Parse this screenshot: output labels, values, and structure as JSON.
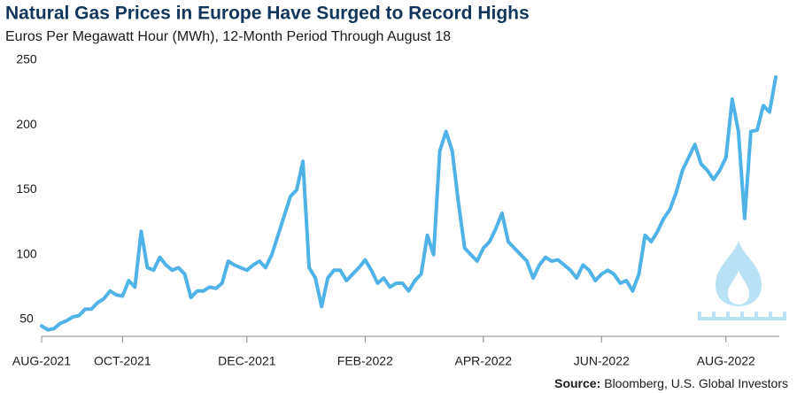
{
  "chart_data": {
    "type": "line",
    "title": "Natural Gas Prices in Europe Have Surged to Record Highs",
    "subtitle": "Euros Per Megawatt Hour (MWh), 12-Month Period Through August 18",
    "source_label": "Source:",
    "source": "Bloomberg, U.S. Global Investors",
    "categories": [
      "AUG-2021",
      null,
      null,
      null,
      null,
      null,
      null,
      null,
      null,
      null,
      null,
      null,
      null,
      "OCT-2021",
      null,
      null,
      null,
      null,
      null,
      null,
      null,
      null,
      null,
      null,
      null,
      null,
      null,
      null,
      null,
      null,
      null,
      null,
      null,
      "DEC-2021",
      null,
      null,
      null,
      null,
      null,
      null,
      null,
      null,
      null,
      null,
      null,
      null,
      null,
      null,
      null,
      null,
      null,
      null,
      "FEB-2022",
      null,
      null,
      null,
      null,
      null,
      null,
      null,
      null,
      null,
      null,
      null,
      null,
      null,
      null,
      null,
      null,
      null,
      null,
      "APR-2022",
      null,
      null,
      null,
      null,
      null,
      null,
      null,
      null,
      null,
      null,
      null,
      null,
      null,
      null,
      null,
      null,
      null,
      null,
      "JUN-2022",
      null,
      null,
      null,
      null,
      null,
      null,
      null,
      null,
      null,
      null,
      null,
      null,
      null,
      null,
      null,
      null,
      null,
      null,
      null,
      "AUG-2022",
      null,
      null,
      null,
      null,
      null,
      null,
      null,
      null
    ],
    "values": [
      45,
      42,
      43,
      47,
      49,
      52,
      53,
      58,
      58,
      63,
      66,
      72,
      69,
      68,
      80,
      75,
      118,
      90,
      88,
      98,
      92,
      88,
      90,
      85,
      67,
      72,
      72,
      75,
      74,
      78,
      95,
      92,
      90,
      88,
      92,
      95,
      90,
      100,
      115,
      130,
      145,
      150,
      172,
      90,
      82,
      60,
      82,
      88,
      88,
      80,
      85,
      90,
      96,
      88,
      78,
      82,
      75,
      78,
      78,
      72,
      80,
      85,
      115,
      100,
      180,
      195,
      180,
      140,
      105,
      100,
      95,
      105,
      110,
      120,
      132,
      110,
      105,
      100,
      95,
      82,
      92,
      98,
      95,
      96,
      92,
      88,
      82,
      92,
      88,
      80,
      85,
      88,
      85,
      78,
      80,
      72,
      85,
      115,
      110,
      118,
      128,
      135,
      148,
      165,
      175,
      185,
      170,
      165,
      158,
      165,
      175,
      220,
      195,
      128,
      195,
      196,
      215,
      210,
      237
    ],
    "color": "#4fb3e8",
    "ylim": [
      37,
      250
    ],
    "yticks": [
      50,
      100,
      150,
      200,
      250
    ],
    "grid": false
  }
}
